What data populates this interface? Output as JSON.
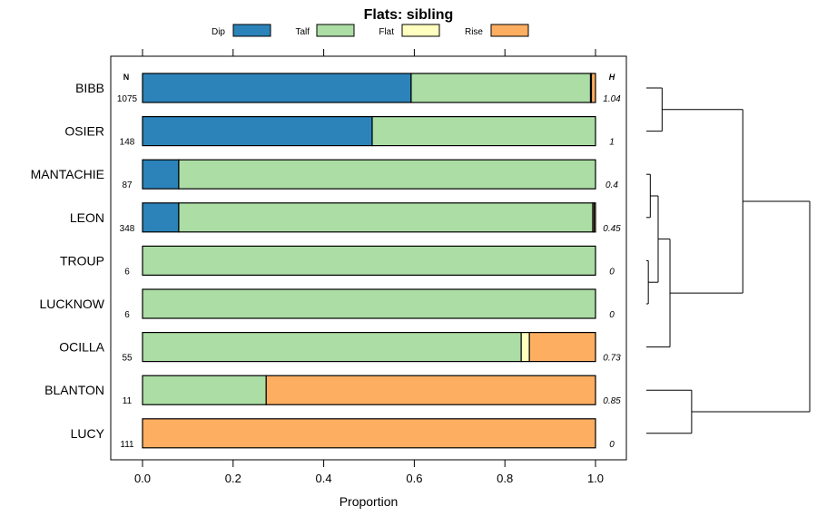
{
  "chart_data": {
    "type": "stacked-bar",
    "title": "Flats: sibling",
    "xlabel": "Proportion",
    "xlim": [
      0,
      1
    ],
    "xticks": [
      "0.0",
      "0.2",
      "0.4",
      "0.6",
      "0.8",
      "1.0"
    ],
    "n_header": "N",
    "h_header": "H",
    "legend": [
      {
        "name": "Dip",
        "color": "#2b83ba"
      },
      {
        "name": "Talf",
        "color": "#abdda4"
      },
      {
        "name": "Flat",
        "color": "#ffffbf"
      },
      {
        "name": "Rise",
        "color": "#fdae61"
      }
    ],
    "series_names": [
      "Dip",
      "Talf",
      "Flat",
      "Rise"
    ],
    "rows": [
      {
        "label": "BIBB",
        "n": "1075",
        "h": "1.04",
        "values": [
          0.593,
          0.396,
          0.002,
          0.009
        ]
      },
      {
        "label": "OSIER",
        "n": "148",
        "h": "1",
        "values": [
          0.507,
          0.493,
          0,
          0
        ]
      },
      {
        "label": "MANTACHIE",
        "n": "87",
        "h": "0.4",
        "values": [
          0.08,
          0.92,
          0,
          0
        ]
      },
      {
        "label": "LEON",
        "n": "348",
        "h": "0.45",
        "values": [
          0.08,
          0.914,
          0.003,
          0.003
        ]
      },
      {
        "label": "TROUP",
        "n": "6",
        "h": "0",
        "values": [
          0,
          1,
          0,
          0
        ]
      },
      {
        "label": "LUCKNOW",
        "n": "6",
        "h": "0",
        "values": [
          0,
          1,
          0,
          0
        ]
      },
      {
        "label": "OCILLA",
        "n": "55",
        "h": "0.73",
        "values": [
          0,
          0.836,
          0.018,
          0.146
        ]
      },
      {
        "label": "BLANTON",
        "n": "11",
        "h": "0.85",
        "values": [
          0,
          0.273,
          0,
          0.727
        ]
      },
      {
        "label": "LUCY",
        "n": "111",
        "h": "0",
        "values": [
          0,
          0,
          0,
          1
        ]
      }
    ],
    "dendrogram": {
      "leaf_order": [
        "BIBB",
        "OSIER",
        "MANTACHIE",
        "LEON",
        "TROUP",
        "LUCKNOW",
        "OCILLA",
        "BLANTON",
        "LUCY"
      ],
      "merges": [
        {
          "a": "BIBB",
          "b": "OSIER",
          "height": 0.08
        },
        {
          "a": "MANTACHIE",
          "b": "LEON",
          "height": 0.02
        },
        {
          "a": "TROUP",
          "b": "LUCKNOW",
          "height": 0.01
        },
        {
          "a": "MANTACHIE+LEON",
          "b": "TROUP+LUCKNOW",
          "height": 0.06
        },
        {
          "a": "MANTACHIE+LEON+TROUP+LUCKNOW",
          "b": "OCILLA",
          "height": 0.12
        },
        {
          "a": "BIBB+OSIER",
          "b": "MANTACHIE+LEON+TROUP+LUCKNOW+OCILLA",
          "height": 0.49
        },
        {
          "a": "BLANTON",
          "b": "LUCY",
          "height": 0.23
        },
        {
          "a": "BIBB+OSIER+MANTACHIE+LEON+TROUP+LUCKNOW+OCILLA",
          "b": "BLANTON+LUCY",
          "height": 0.83
        }
      ]
    }
  }
}
